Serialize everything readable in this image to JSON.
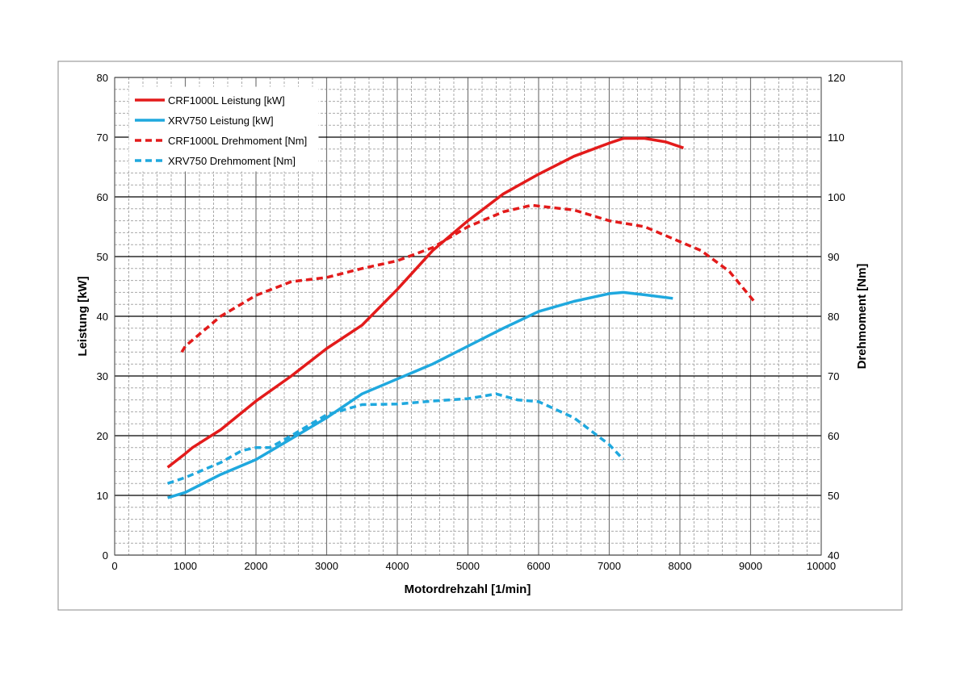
{
  "chart_data": {
    "type": "line",
    "title": "",
    "xlabel": "Motordrehzahl [1/min]",
    "ylabel": "Leistung  [kW]",
    "y2label": "Drehmoment  [Nm]",
    "xlim": [
      0,
      10000
    ],
    "ylim": [
      0,
      80
    ],
    "y2lim": [
      40,
      120
    ],
    "xticks": [
      0,
      1000,
      2000,
      3000,
      4000,
      5000,
      6000,
      7000,
      8000,
      9000,
      10000
    ],
    "yticks": [
      0,
      10,
      20,
      30,
      40,
      50,
      60,
      70,
      80
    ],
    "y2ticks": [
      40,
      50,
      60,
      70,
      80,
      90,
      100,
      110,
      120
    ],
    "grid": true,
    "legend_position": "top-left",
    "series": [
      {
        "name": "CRF1000L Leistung [kW]",
        "axis": "left",
        "style": "solid",
        "color": "#e31b1b",
        "x": [
          750,
          1000,
          1100,
          1500,
          2000,
          2500,
          3000,
          3500,
          4000,
          4500,
          5000,
          5500,
          6000,
          6500,
          7000,
          7200,
          7500,
          7800,
          8050
        ],
        "y": [
          14.7,
          17,
          18,
          21,
          25.8,
          30,
          34.6,
          38.5,
          44.5,
          51,
          56,
          60.5,
          63.8,
          66.8,
          69,
          69.8,
          69.8,
          69.2,
          68.2
        ]
      },
      {
        "name": "XRV750 Leistung [kW]",
        "axis": "left",
        "style": "solid",
        "color": "#1fa8de",
        "x": [
          750,
          1000,
          1500,
          2000,
          2500,
          3000,
          3500,
          4000,
          4500,
          5000,
          5500,
          6000,
          6500,
          7000,
          7200,
          7500,
          7900
        ],
        "y": [
          9.6,
          10.5,
          13.5,
          16,
          19.5,
          23,
          27,
          29.5,
          32,
          35,
          38,
          40.8,
          42.5,
          43.8,
          44,
          43.6,
          43
        ]
      },
      {
        "name": "CRF1000L Drehmoment [Nm]",
        "axis": "right",
        "style": "dashed",
        "color": "#e31b1b",
        "x": [
          950,
          1000,
          1500,
          2000,
          2500,
          3000,
          3500,
          4000,
          4500,
          5000,
          5500,
          5900,
          6500,
          7000,
          7500,
          8000,
          8300,
          8700,
          9050
        ],
        "y": [
          74,
          75,
          80,
          83.5,
          85.8,
          86.5,
          88,
          89.3,
          91.5,
          95,
          97.5,
          98.6,
          97.8,
          96,
          95,
          92.5,
          91,
          87.5,
          82.5
        ]
      },
      {
        "name": "XRV750 Drehmoment [Nm]",
        "axis": "right",
        "style": "dashed",
        "color": "#1fa8de",
        "x": [
          750,
          1000,
          1500,
          1800,
          2000,
          2200,
          2500,
          3000,
          3500,
          4000,
          4500,
          5000,
          5400,
          5700,
          6000,
          6500,
          7000,
          7200
        ],
        "y": [
          52,
          53,
          55.5,
          57.5,
          58,
          58,
          60,
          63.5,
          65.2,
          65.3,
          65.8,
          66.2,
          67,
          66,
          65.7,
          63,
          58.5,
          56
        ]
      }
    ]
  }
}
